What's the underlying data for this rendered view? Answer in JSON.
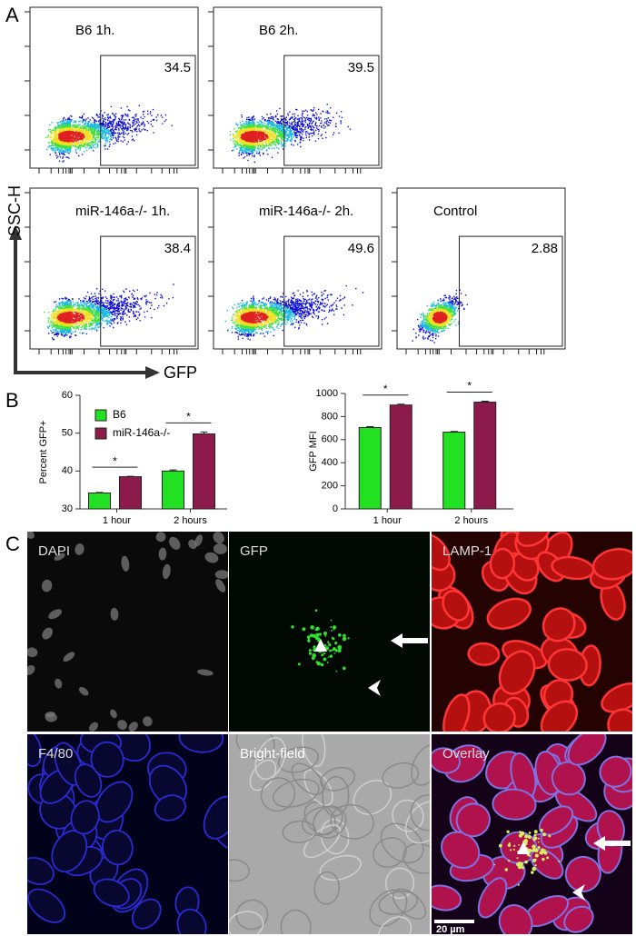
{
  "panel_labels": [
    "A",
    "B",
    "C"
  ],
  "flow_plots": [
    {
      "title": "B6 1h.",
      "gate": 34.5
    },
    {
      "title": "B6 2h.",
      "gate": 39.5
    },
    {
      "title": "miR-146a-/- 1h.",
      "gate": 38.4
    },
    {
      "title": "miR-146a-/- 2h.",
      "gate": 49.6
    },
    {
      "title": "Control",
      "gate": 2.88
    }
  ],
  "flow_axes": {
    "y": "SSC-H",
    "x": "GFP"
  },
  "chart_data": [
    {
      "type": "bar",
      "y_label": "Percent GFP+",
      "categories": [
        "1 hour",
        "2 hours"
      ],
      "series": [
        {
          "name": "B6",
          "color": "#22e022",
          "values": [
            34.2,
            40.0
          ],
          "errors": [
            0.15,
            0.3
          ]
        },
        {
          "name": "miR-146a-/-",
          "color": "#8c1a4b",
          "values": [
            38.5,
            49.8
          ],
          "errors": [
            0.1,
            0.5
          ]
        }
      ],
      "significance": [
        "*",
        "*"
      ],
      "ylim": [
        30,
        60
      ],
      "yticks": [
        30,
        40,
        50,
        60
      ],
      "legend": "upper left"
    },
    {
      "type": "bar",
      "y_label": "GFP MFI",
      "categories": [
        "1 hour",
        "2 hours"
      ],
      "series": [
        {
          "color": "#22e022",
          "values": [
            705,
            665
          ],
          "errors": [
            8,
            6
          ]
        },
        {
          "color": "#8c1a4b",
          "values": [
            900,
            925
          ],
          "errors": [
            7,
            8
          ]
        }
      ],
      "significance": [
        "*",
        "*"
      ],
      "ylim": [
        0,
        1000
      ],
      "yticks": [
        0,
        200,
        400,
        600,
        800,
        1000
      ]
    }
  ],
  "micrographs": [
    {
      "label": "DAPI"
    },
    {
      "label": "GFP"
    },
    {
      "label": "LAMP-1"
    },
    {
      "label": "F4/80"
    },
    {
      "label": "Bright-field"
    },
    {
      "label": "Overlay"
    }
  ],
  "scale_bar": "20 µm"
}
